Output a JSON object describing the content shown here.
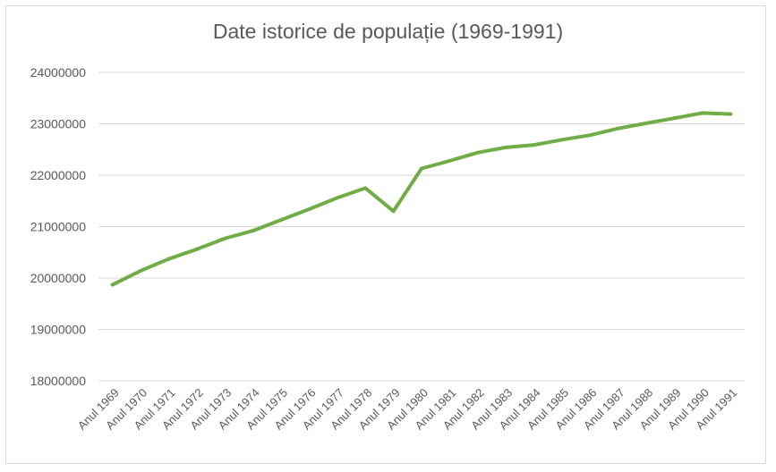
{
  "chart_data": {
    "type": "line",
    "title": "Date istorice de populație (1969-1991)",
    "xlabel": "",
    "ylabel": "",
    "categories": [
      "Anul 1969",
      "Anul 1970",
      "Anul 1971",
      "Anul 1972",
      "Anul 1973",
      "Anul 1974",
      "Anul 1975",
      "Anul 1976",
      "Anul 1977",
      "Anul 1978",
      "Anul 1979",
      "Anul 1980",
      "Anul 1981",
      "Anul 1982",
      "Anul 1983",
      "Anul 1984",
      "Anul 1985",
      "Anul 1986",
      "Anul 1987",
      "Anul 1988",
      "Anul 1989",
      "Anul 1990",
      "Anul 1991"
    ],
    "series": [
      {
        "values": [
          19870000,
          20140000,
          20370000,
          20560000,
          20770000,
          20920000,
          21130000,
          21340000,
          21560000,
          21750000,
          21300000,
          22130000,
          22280000,
          22440000,
          22540000,
          22590000,
          22690000,
          22780000,
          22910000,
          23010000,
          23110000,
          23210000,
          23190000
        ],
        "color": "#70ad47"
      }
    ],
    "ylim": [
      18000000,
      24000000
    ],
    "yticks": [
      "18000000",
      "19000000",
      "20000000",
      "21000000",
      "22000000",
      "23000000",
      "24000000"
    ],
    "grid": "horizontal",
    "legend": "none"
  },
  "colors": {
    "line": "#70ad47",
    "grid": "#d9d9d9",
    "text": "#595959"
  }
}
